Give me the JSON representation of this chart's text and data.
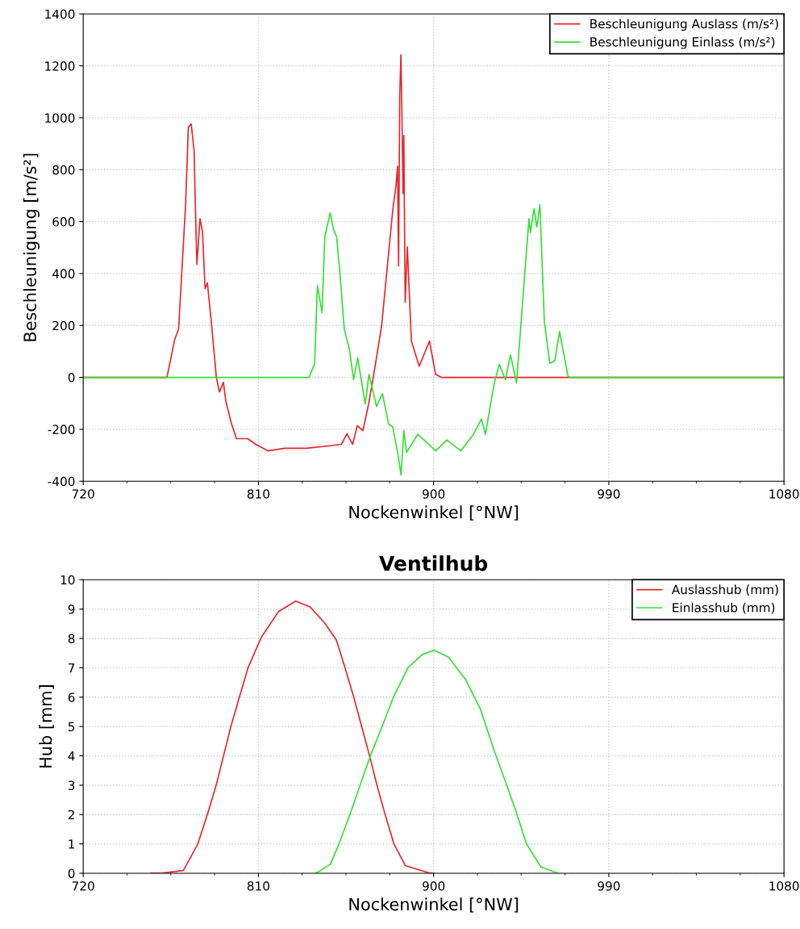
{
  "chart_data": [
    {
      "type": "line",
      "xlabel": "Nockenwinkel [°NW]",
      "ylabel": "Beschleunigung [m/s²]",
      "xlim": [
        720,
        1080
      ],
      "xticks": [
        720,
        810,
        900,
        990,
        1080
      ],
      "ylim": [
        -400,
        1400
      ],
      "yticks": [
        -400,
        -200,
        0,
        200,
        400,
        600,
        800,
        1000,
        1200,
        1400
      ],
      "grid": true,
      "legend": "top right",
      "marker": "none",
      "line_style": "solid",
      "series": [
        {
          "name": "Beschleunigung Auslass (m/s²)",
          "color": "#e8262a",
          "x": [
            720,
            763,
            767,
            769,
            772.6,
            774,
            775.5,
            777,
            777.6,
            778.4,
            780,
            781.3,
            782.6,
            783.8,
            786,
            788.4,
            790,
            792,
            793.3,
            796,
            798.7,
            804.5,
            808.6,
            814.9,
            823.6,
            834.7,
            846,
            852.6,
            855.5,
            858.4,
            860.8,
            863.7,
            866.6,
            869,
            873.3,
            879,
            880.7,
            881.5,
            882,
            882.6,
            883.2,
            883.6,
            884.3,
            884.7,
            885.4,
            886.5,
            888.6,
            892.6,
            897.9,
            901,
            904,
            1080
          ],
          "values": [
            0,
            0,
            146,
            186,
            665,
            963,
            976,
            870,
            665,
            435,
            612,
            560,
            342,
            364,
            199,
            0,
            -56,
            -19,
            -93,
            -174,
            -236,
            -236,
            -258,
            -283,
            -273,
            -273,
            -264,
            -258,
            -217,
            -258,
            -186,
            -205,
            -103,
            0,
            199,
            643,
            740,
            814,
            429,
            1082,
            1243,
            1072,
            708,
            932,
            289,
            503,
            140,
            43,
            140,
            12,
            0,
            0
          ]
        },
        {
          "name": "Beschleunigung Einlass (m/s²)",
          "color": "#33e033",
          "x": [
            720,
            836,
            838.9,
            840.3,
            842.7,
            844.1,
            846.9,
            848.5,
            850.2,
            852.4,
            854.1,
            856.8,
            858.9,
            861,
            864.9,
            866.8,
            870.7,
            873.7,
            876.9,
            879,
            881.7,
            883.3,
            884.7,
            886.1,
            891.9,
            901.1,
            906.8,
            914,
            920.5,
            924.6,
            926.6,
            931.2,
            933.8,
            936.9,
            939.5,
            942.6,
            946.9,
            949,
            949.7,
            951.6,
            953,
            954.6,
            956.9,
            959.7,
            962.3,
            964.7,
            969,
            969.8,
            1080
          ],
          "values": [
            0,
            0,
            53,
            354,
            249,
            541,
            634,
            572,
            541,
            354,
            187,
            106,
            -9,
            75,
            -103,
            12,
            -112,
            -62,
            -180,
            -190,
            -298,
            -376,
            -205,
            -289,
            -219,
            -283,
            -241,
            -283,
            -219,
            -160,
            -219,
            -21,
            50,
            -9,
            87,
            -21,
            407,
            612,
            558,
            650,
            579,
            665,
            214,
            54,
            65,
            177,
            6,
            0,
            0
          ]
        }
      ]
    },
    {
      "type": "line",
      "title": "Ventilhub",
      "xlabel": "Nockenwinkel [°NW]",
      "ylabel": "Hub [mm]",
      "xlim": [
        720,
        1080
      ],
      "xticks": [
        720,
        810,
        900,
        990,
        1080
      ],
      "ylim": [
        0,
        10
      ],
      "yticks": [
        0,
        1,
        2,
        3,
        4,
        5,
        6,
        7,
        8,
        9,
        10
      ],
      "grid": true,
      "legend": "top right",
      "marker": "none",
      "line_style": "solid",
      "series": [
        {
          "name": "Auslasshub (mm)",
          "color": "#e8262a",
          "x": [
            755,
            760.4,
            771.5,
            778.9,
            784.1,
            788.5,
            792.2,
            795.9,
            800.4,
            804.8,
            811.5,
            820.4,
            829.2,
            836.6,
            844,
            850,
            854.4,
            858.8,
            863,
            867,
            870.7,
            874.8,
            879.6,
            885.5,
            897.3,
            900
          ],
          "values": [
            0,
            0,
            0.1,
            1.0,
            2.07,
            3.05,
            4.03,
            5.01,
            6.04,
            7.02,
            8.04,
            8.92,
            9.27,
            9.07,
            8.53,
            7.95,
            7.02,
            6.04,
            5.01,
            4.03,
            3.05,
            2.07,
            1.0,
            0.26,
            0.02,
            0
          ]
        },
        {
          "name": "Einlasshub (mm)",
          "color": "#33e033",
          "x": [
            839.6,
            847,
            851.4,
            857.4,
            862.5,
            867.7,
            873.6,
            879.6,
            887,
            894.4,
            900.3,
            907.7,
            916.6,
            924,
            931.4,
            937.3,
            942.5,
            947.7,
            955.1,
            963.9
          ],
          "values": [
            0,
            0.31,
            1.0,
            2.07,
            3.05,
            4.03,
            5.01,
            6.04,
            7.02,
            7.46,
            7.6,
            7.36,
            6.58,
            5.6,
            4.13,
            3.05,
            2.07,
            1.0,
            0.22,
            0
          ]
        }
      ]
    }
  ]
}
